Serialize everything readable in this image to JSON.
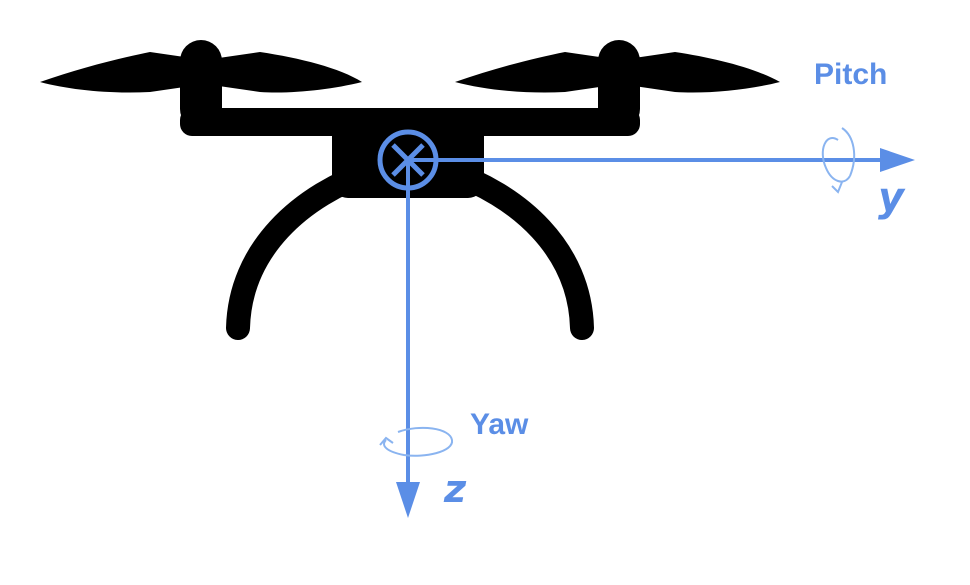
{
  "colors": {
    "drone": "#000000",
    "axis": "#5b8ee6",
    "rotation": "#8ab4f0",
    "background": "#ffffff"
  },
  "labels": {
    "pitch": "Pitch",
    "yaw": "Yaw",
    "y_axis": "y",
    "z_axis": "z"
  },
  "icons": {
    "drone": "quadcopter-drone-icon",
    "origin": "origin-cross-icon",
    "pitch_rotation": "rotation-arrow-icon",
    "yaw_rotation": "rotation-arrow-icon"
  }
}
